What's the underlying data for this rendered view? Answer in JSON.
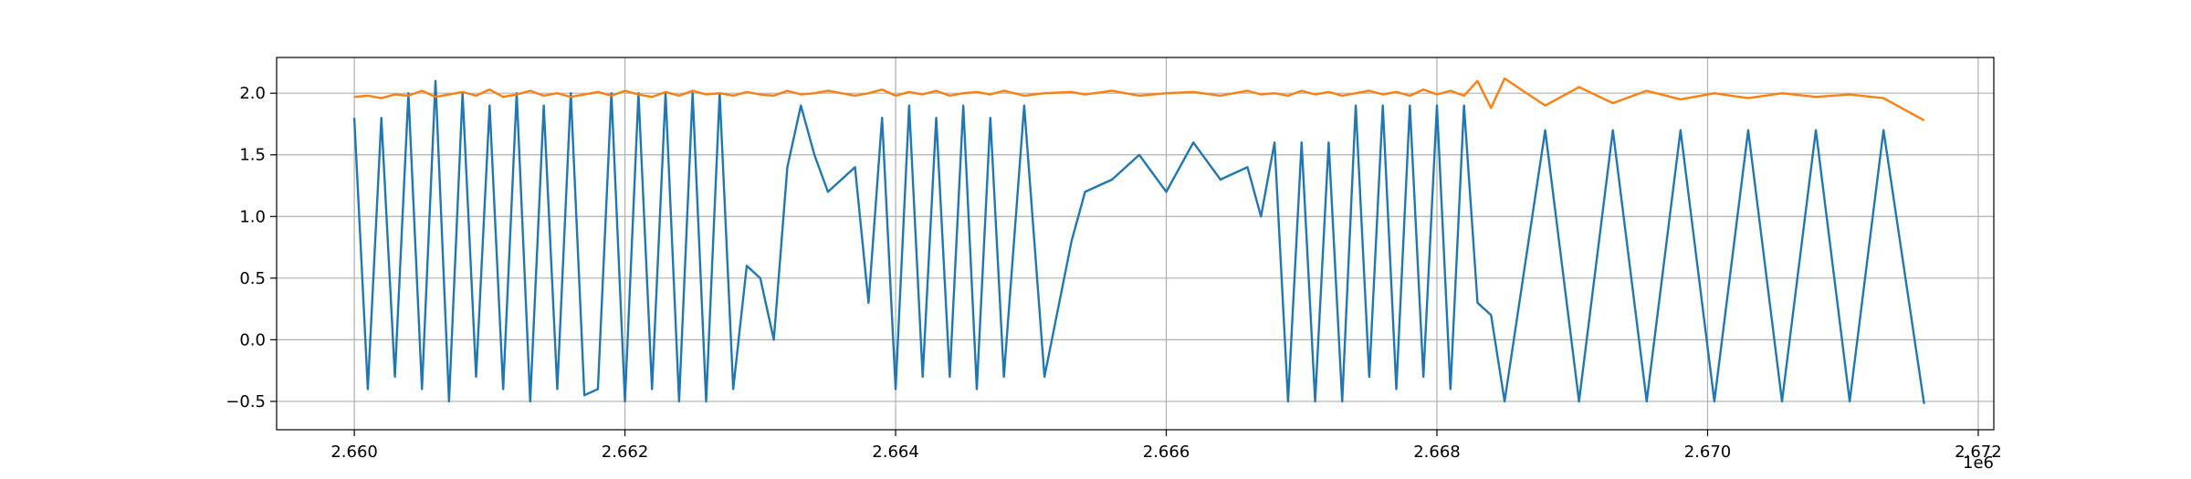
{
  "chart_data": {
    "type": "line",
    "x_offset_label": "1e6",
    "x": [
      2660000,
      2660100,
      2660200,
      2660300,
      2660400,
      2660500,
      2660600,
      2660700,
      2660800,
      2660900,
      2661000,
      2661100,
      2661200,
      2661300,
      2661400,
      2661500,
      2661600,
      2661700,
      2661800,
      2661900,
      2662000,
      2662100,
      2662200,
      2662300,
      2662400,
      2662500,
      2662600,
      2662700,
      2662800,
      2662900,
      2663000,
      2663100,
      2663200,
      2663300,
      2663400,
      2663500,
      2663700,
      2663800,
      2663900,
      2664000,
      2664100,
      2664200,
      2664300,
      2664400,
      2664500,
      2664600,
      2664700,
      2664800,
      2664950,
      2665100,
      2665300,
      2665400,
      2665600,
      2665800,
      2666000,
      2666200,
      2666400,
      2666600,
      2666700,
      2666800,
      2666900,
      2667000,
      2667100,
      2667200,
      2667300,
      2667400,
      2667500,
      2667600,
      2667700,
      2667800,
      2667900,
      2668000,
      2668100,
      2668200,
      2668300,
      2668400,
      2668500,
      2668800,
      2669050,
      2669300,
      2669550,
      2669800,
      2670050,
      2670300,
      2670550,
      2670800,
      2671050,
      2671300,
      2671600
    ],
    "series": [
      {
        "color": "#1f77b4",
        "values": [
          1.8,
          -0.4,
          1.8,
          -0.3,
          2.0,
          -0.4,
          2.1,
          -0.5,
          2.0,
          -0.3,
          1.9,
          -0.4,
          2.0,
          -0.5,
          1.9,
          -0.4,
          2.0,
          -0.45,
          -0.4,
          2.0,
          -0.5,
          2.0,
          -0.4,
          2.0,
          -0.5,
          2.0,
          -0.5,
          2.0,
          -0.4,
          0.6,
          0.5,
          0.0,
          1.4,
          1.9,
          1.5,
          1.2,
          1.4,
          0.3,
          1.8,
          -0.4,
          1.9,
          -0.3,
          1.8,
          -0.3,
          1.9,
          -0.4,
          1.8,
          -0.3,
          1.9,
          -0.3,
          0.8,
          1.2,
          1.3,
          1.5,
          1.2,
          1.6,
          1.3,
          1.4,
          1.0,
          1.6,
          -0.5,
          1.6,
          -0.5,
          1.6,
          -0.5,
          1.9,
          -0.3,
          1.9,
          -0.4,
          1.9,
          -0.3,
          1.9,
          -0.4,
          1.9,
          0.3,
          0.2,
          -0.5,
          1.7,
          -0.5,
          1.7,
          -0.5,
          1.7,
          -0.5,
          1.7,
          -0.5,
          1.7,
          -0.5,
          1.7,
          -0.52
        ]
      },
      {
        "color": "#ff7f0e",
        "values": [
          1.97,
          1.98,
          1.96,
          1.99,
          1.98,
          2.02,
          1.97,
          1.99,
          2.01,
          1.98,
          2.03,
          1.97,
          1.99,
          2.02,
          1.98,
          2.0,
          1.97,
          1.99,
          2.01,
          1.98,
          2.02,
          1.99,
          1.97,
          2.01,
          1.98,
          2.02,
          1.99,
          2.0,
          1.98,
          2.01,
          1.99,
          1.98,
          2.02,
          1.99,
          2.0,
          2.02,
          1.98,
          2.0,
          2.03,
          1.98,
          2.01,
          1.99,
          2.02,
          1.98,
          2.0,
          2.01,
          1.99,
          2.02,
          1.98,
          2.0,
          2.01,
          1.99,
          2.02,
          1.98,
          2.0,
          2.01,
          1.98,
          2.02,
          1.99,
          2.0,
          1.98,
          2.02,
          1.99,
          2.01,
          1.98,
          2.0,
          2.02,
          1.99,
          2.01,
          1.98,
          2.03,
          1.99,
          2.02,
          1.98,
          2.1,
          1.88,
          2.12,
          1.9,
          2.05,
          1.92,
          2.02,
          1.95,
          2.0,
          1.96,
          2.0,
          1.97,
          1.99,
          1.96,
          1.78
        ]
      }
    ],
    "xlim": [
      2659426,
      2672115
    ],
    "ylim": [
      -0.73,
      2.29
    ],
    "xticks": [
      {
        "value": 2660000,
        "label": "2.660"
      },
      {
        "value": 2662000,
        "label": "2.662"
      },
      {
        "value": 2664000,
        "label": "2.664"
      },
      {
        "value": 2666000,
        "label": "2.666"
      },
      {
        "value": 2668000,
        "label": "2.668"
      },
      {
        "value": 2670000,
        "label": "2.670"
      },
      {
        "value": 2672000,
        "label": "2.672"
      }
    ],
    "yticks": [
      {
        "value": -0.5,
        "label": "−0.5"
      },
      {
        "value": 0,
        "label": "0.0"
      },
      0.5,
      {
        "value": 1,
        "label": "1.0"
      },
      1.5,
      {
        "value": 2,
        "label": "2.0"
      }
    ],
    "grid": true
  }
}
